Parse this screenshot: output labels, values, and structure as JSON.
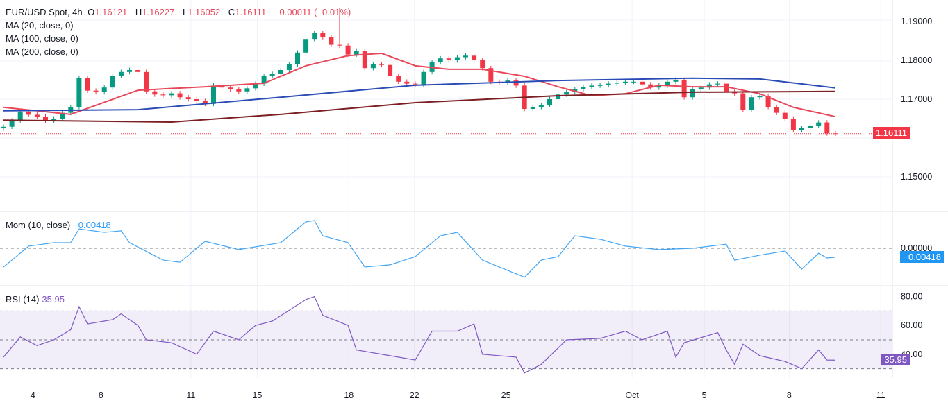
{
  "header": {
    "symbol": "EUR/USD Spot, 4h",
    "o_label": "O",
    "o": "1.16121",
    "h_label": "H",
    "h": "1.16227",
    "l_label": "L",
    "l": "1.16052",
    "c_label": "C",
    "c": "1.16111",
    "change": "−0.00011 (−0.01%)"
  },
  "indicators": {
    "ma20": "MA (20, close, 0)",
    "ma100": "MA (100, close, 0)",
    "ma200": "MA (200, close, 0)",
    "mom": "Mom (10, close)",
    "mom_value": "−0.00418",
    "rsi": "RSI (14)",
    "rsi_value": "35.95"
  },
  "colors": {
    "up": "#089981",
    "down": "#f23645",
    "ma20": "#e8475a",
    "ma100": "#2a4bb5",
    "ma200": "#7b1f22",
    "mom": "#42a5f5",
    "rsi": "#7e57c2",
    "price_tag": "#f23645",
    "mom_tag": "#2196f3",
    "rsi_tag": "#7e57c2"
  },
  "chart_data": [
    {
      "type": "candlestick",
      "title": "EUR/USD Spot, 4h",
      "ylim": [
        1.14,
        1.195
      ],
      "yticks": [
        "1.19000",
        "1.18000",
        "1.17000",
        "1.15000"
      ],
      "last_price": "1.16111",
      "close": [
        1.1629,
        1.1645,
        1.1668,
        1.166,
        1.1655,
        1.1645,
        1.165,
        1.1665,
        1.168,
        1.1755,
        1.1722,
        1.1718,
        1.173,
        1.176,
        1.177,
        1.1775,
        1.177,
        1.172,
        1.1712,
        1.171,
        1.1715,
        1.1705,
        1.17,
        1.1695,
        1.1688,
        1.1735,
        1.173,
        1.1725,
        1.172,
        1.1728,
        1.174,
        1.176,
        1.1765,
        1.1775,
        1.179,
        1.182,
        1.1855,
        1.187,
        1.186,
        1.184,
        1.1838,
        1.1815,
        1.1825,
        1.178,
        1.179,
        1.1788,
        1.176,
        1.1745,
        1.174,
        1.1738,
        1.177,
        1.1795,
        1.1805,
        1.18,
        1.1808,
        1.1812,
        1.18,
        1.178,
        1.1745,
        1.1742,
        1.1748,
        1.1735,
        1.1675,
        1.168,
        1.1685,
        1.17,
        1.1712,
        1.1718,
        1.1725,
        1.1732,
        1.1735,
        1.1736,
        1.174,
        1.1742,
        1.1745,
        1.1745,
        1.1738,
        1.173,
        1.1735,
        1.1745,
        1.175,
        1.1705,
        1.1725,
        1.173,
        1.1738,
        1.174,
        1.172,
        1.1715,
        1.1672,
        1.1705,
        1.1708,
        1.168,
        1.1665,
        1.165,
        1.162,
        1.1625,
        1.1632,
        1.164,
        1.1612,
        1.1611
      ],
      "series": [
        {
          "name": "MA (20, close, 0)",
          "points": [
            [
              0,
              1.1679
            ],
            [
              8,
              1.1661
            ],
            [
              16,
              1.1723
            ],
            [
              24,
              1.1732
            ],
            [
              31,
              1.1741
            ],
            [
              36,
              1.1786
            ],
            [
              41,
              1.1812
            ],
            [
              45,
              1.1818
            ],
            [
              49,
              1.1786
            ],
            [
              53,
              1.1777
            ],
            [
              57,
              1.1777
            ],
            [
              62,
              1.1759
            ],
            [
              66,
              1.1732
            ],
            [
              70,
              1.1709
            ],
            [
              74,
              1.1714
            ],
            [
              78,
              1.1736
            ],
            [
              82,
              1.1732
            ],
            [
              86,
              1.1732
            ],
            [
              90,
              1.1714
            ],
            [
              94,
              1.1679
            ],
            [
              99,
              1.1655
            ]
          ]
        },
        {
          "name": "MA (100, close, 0)",
          "points": [
            [
              0,
              1.167
            ],
            [
              16,
              1.1673
            ],
            [
              33,
              1.1705
            ],
            [
              49,
              1.1736
            ],
            [
              66,
              1.1748
            ],
            [
              82,
              1.1754
            ],
            [
              90,
              1.1752
            ],
            [
              99,
              1.1729
            ]
          ]
        },
        {
          "name": "MA (200, close, 0)",
          "points": [
            [
              0,
              1.1646
            ],
            [
              20,
              1.1641
            ],
            [
              33,
              1.1661
            ],
            [
              49,
              1.1691
            ],
            [
              66,
              1.1709
            ],
            [
              82,
              1.1718
            ],
            [
              99,
              1.172
            ]
          ]
        }
      ]
    },
    {
      "type": "line",
      "title": "Mom (10, close)",
      "yticks": [
        "0.00000"
      ],
      "last_value": "−0.00418",
      "points": [
        [
          0,
          -0.0087
        ],
        [
          1,
          -0.0055
        ],
        [
          3,
          0.001
        ],
        [
          6,
          0.0026
        ],
        [
          8,
          0.0026
        ],
        [
          9,
          0.009
        ],
        [
          12,
          0.0074
        ],
        [
          14,
          0.0081
        ],
        [
          15,
          0.0026
        ],
        [
          19,
          -0.0055
        ],
        [
          21,
          -0.0065
        ],
        [
          24,
          0.0032
        ],
        [
          28,
          -0.0006
        ],
        [
          33,
          0.0026
        ],
        [
          36,
          0.0123
        ],
        [
          37,
          0.0129
        ],
        [
          38,
          0.0058
        ],
        [
          41,
          0.0026
        ],
        [
          43,
          -0.0087
        ],
        [
          46,
          -0.0077
        ],
        [
          49,
          -0.0039
        ],
        [
          52,
          0.0058
        ],
        [
          54,
          0.0074
        ],
        [
          57,
          -0.0055
        ],
        [
          62,
          -0.0135
        ],
        [
          64,
          -0.0055
        ],
        [
          66,
          -0.0039
        ],
        [
          68,
          0.0058
        ],
        [
          71,
          0.0042
        ],
        [
          74,
          0.001
        ],
        [
          78,
          -0.0006
        ],
        [
          82,
          0
        ],
        [
          86,
          0.0019
        ],
        [
          87,
          -0.0055
        ],
        [
          90,
          -0.0032
        ],
        [
          93,
          -0.0013
        ],
        [
          95,
          -0.0097
        ],
        [
          97,
          -0.0023
        ],
        [
          98,
          -0.0045
        ],
        [
          99,
          -0.00418
        ]
      ]
    },
    {
      "type": "line",
      "title": "RSI (14)",
      "yticks": [
        "80.00",
        "60.00",
        "40.00"
      ],
      "bands": [
        70,
        50,
        30
      ],
      "last_value": "35.95",
      "points": [
        [
          0,
          38
        ],
        [
          2,
          52
        ],
        [
          4,
          46
        ],
        [
          6,
          50
        ],
        [
          8,
          57
        ],
        [
          9,
          73
        ],
        [
          10,
          61
        ],
        [
          13,
          64
        ],
        [
          14,
          68
        ],
        [
          16,
          60
        ],
        [
          17,
          50
        ],
        [
          20,
          48
        ],
        [
          23,
          40
        ],
        [
          25,
          56
        ],
        [
          28,
          50
        ],
        [
          30,
          60
        ],
        [
          32,
          63
        ],
        [
          36,
          78
        ],
        [
          37,
          80
        ],
        [
          38,
          67
        ],
        [
          41,
          60
        ],
        [
          42,
          43
        ],
        [
          46,
          39
        ],
        [
          49,
          36
        ],
        [
          51,
          56
        ],
        [
          54,
          56
        ],
        [
          56,
          61
        ],
        [
          57,
          40
        ],
        [
          61,
          38
        ],
        [
          62,
          27
        ],
        [
          64,
          33
        ],
        [
          67,
          50
        ],
        [
          71,
          51
        ],
        [
          74,
          56
        ],
        [
          76,
          50
        ],
        [
          79,
          56
        ],
        [
          80,
          38
        ],
        [
          81,
          48
        ],
        [
          85,
          55
        ],
        [
          86,
          43
        ],
        [
          87,
          33
        ],
        [
          88,
          47
        ],
        [
          90,
          39
        ],
        [
          93,
          35
        ],
        [
          95,
          30
        ],
        [
          97,
          43
        ],
        [
          98,
          36
        ],
        [
          99,
          35.95
        ]
      ]
    }
  ],
  "xaxis": {
    "ticks": [
      {
        "label": "4",
        "i": 3.5
      },
      {
        "label": "8",
        "i": 11.6
      },
      {
        "label": "11",
        "i": 22.3
      },
      {
        "label": "15",
        "i": 30.2
      },
      {
        "label": "18",
        "i": 41.1
      },
      {
        "label": "22",
        "i": 48.9
      },
      {
        "label": "25",
        "i": 59.8
      },
      {
        "label": "Oct",
        "i": 74.8
      },
      {
        "label": "5",
        "i": 83.4
      },
      {
        "label": "8",
        "i": 93.5
      },
      {
        "label": "11",
        "i": 104.4
      }
    ]
  }
}
